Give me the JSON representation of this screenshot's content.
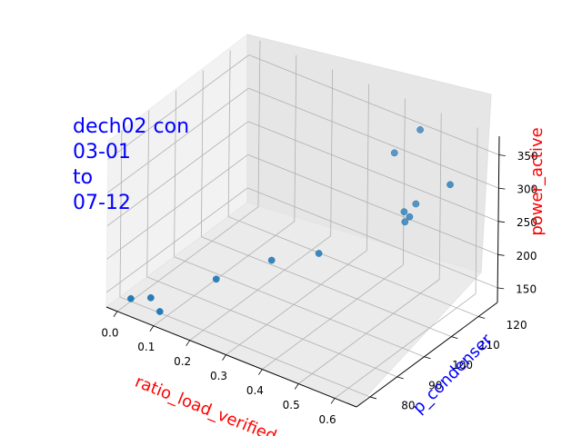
{
  "chart_data": {
    "type": "scatter",
    "dimensions": 3,
    "title_lines": [
      "dech02 con",
      "03-01",
      "to",
      "07-12"
    ],
    "title_color": "#0000ff",
    "xlabel": "ratio_load_verified",
    "ylabel": "p_condenser",
    "zlabel": "power_active",
    "xlabel_color": "#ff0000",
    "ylabel_color": "#0000ff",
    "zlabel_color": "#ff0000",
    "xticks": [
      "0.0",
      "0.1",
      "0.2",
      "0.3",
      "0.4",
      "0.5",
      "0.6"
    ],
    "yticks": [
      "80",
      "90",
      "100",
      "110",
      "120"
    ],
    "zticks": [
      "150",
      "200",
      "250",
      "300",
      "350"
    ],
    "xlim": [
      -0.03,
      0.66
    ],
    "ylim": [
      75,
      127
    ],
    "zlim": [
      128,
      378
    ],
    "grid": true,
    "point_color": "#1f77b4",
    "points": [
      {
        "x": 0.0,
        "y": 80,
        "z": 132
      },
      {
        "x": 0.04,
        "y": 82,
        "z": 136
      },
      {
        "x": 0.08,
        "y": 80,
        "z": 130
      },
      {
        "x": 0.16,
        "y": 90,
        "z": 166
      },
      {
        "x": 0.26,
        "y": 97,
        "z": 195
      },
      {
        "x": 0.36,
        "y": 101,
        "z": 215
      },
      {
        "x": 0.47,
        "y": 118,
        "z": 235
      },
      {
        "x": 0.46,
        "y": 119,
        "z": 245
      },
      {
        "x": 0.49,
        "y": 117,
        "z": 250
      },
      {
        "x": 0.47,
        "y": 122,
        "z": 250
      },
      {
        "x": 0.38,
        "y": 126,
        "z": 295
      },
      {
        "x": 0.45,
        "y": 126,
        "z": 345
      },
      {
        "x": 0.63,
        "y": 113,
        "z": 341
      }
    ]
  }
}
